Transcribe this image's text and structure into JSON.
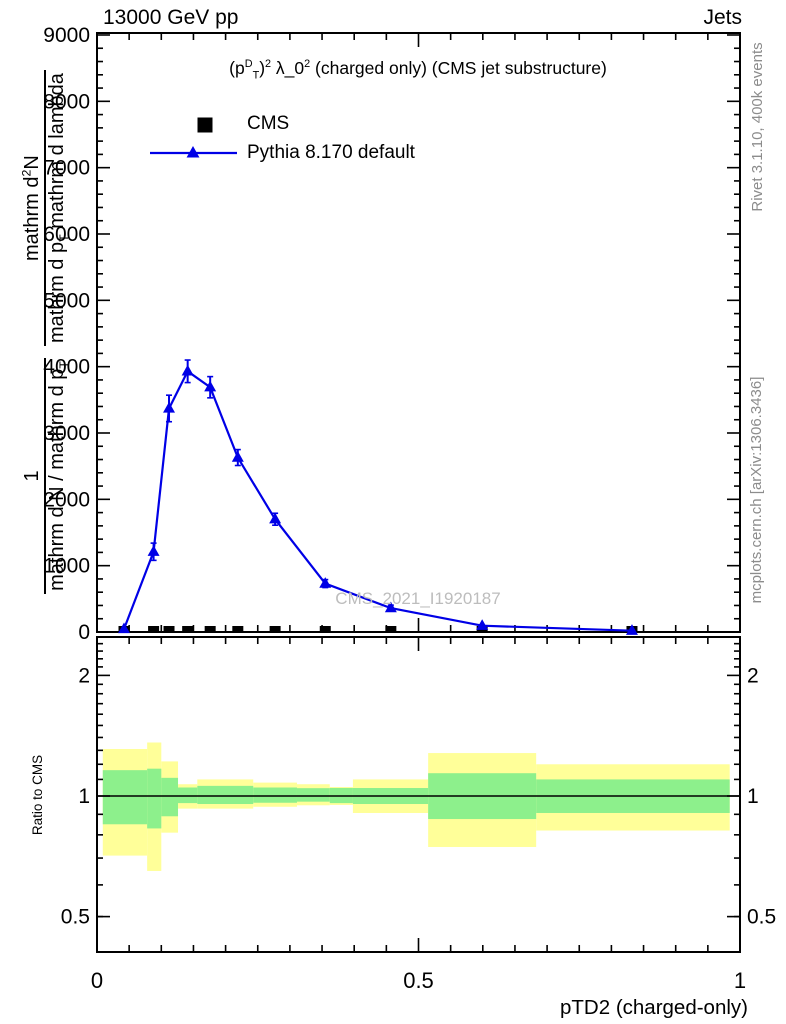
{
  "header": {
    "energy": "13000 GeV pp",
    "category": "Jets"
  },
  "title_tokens": [
    {
      "t": "n",
      "v": "(p"
    },
    {
      "t": "sup",
      "v": "D"
    },
    {
      "t": "sub",
      "v": "T"
    },
    {
      "t": "n",
      "v": ")"
    },
    {
      "t": "sup",
      "v": "2"
    },
    {
      "t": "n",
      "v": " λ_0"
    },
    {
      "t": "sup",
      "v": "2"
    },
    {
      "t": "n",
      "v": " (charged only) (CMS jet substructure)"
    }
  ],
  "legend": {
    "items": [
      {
        "label": "CMS",
        "marker": "square",
        "color": "#000000"
      },
      {
        "label": "Pythia 8.170 default",
        "marker": "triangle-line",
        "color": "#0000e6"
      }
    ]
  },
  "watermark": "CMS_2021_I1920187",
  "side_notes": {
    "rivet": "Rivet 3.1.10,  400k events",
    "mcplots": "mcplots.cern.ch [arXiv:1306.3436]"
  },
  "axes": {
    "xlabel": "pTD2 (charged-only)",
    "ylabel_ratio": "Ratio to CMS",
    "ylabel_main": {
      "frac1": {
        "num_tokens": [
          {
            "t": "n",
            "v": "1"
          }
        ],
        "den_tokens": [
          {
            "t": "n",
            "v": "mathrm d N / mathrm d p"
          },
          {
            "t": "sub",
            "v": "T"
          }
        ]
      },
      "frac2": {
        "num_tokens": [
          {
            "t": "n",
            "v": "mathrm d"
          },
          {
            "t": "sup",
            "v": "2"
          },
          {
            "t": "n",
            "v": "N"
          }
        ],
        "den_tokens": [
          {
            "t": "n",
            "v": "mathrm d p"
          },
          {
            "t": "sub",
            "v": "T"
          },
          {
            "t": "n",
            "v": " mathrm d lambda"
          }
        ]
      }
    }
  },
  "chart_data": {
    "type": "line",
    "title": "(p_T^D)^2 lambda_0^2 (charged only) (CMS jet substructure)",
    "xlabel": "pTD2 (charged-only)",
    "x_axis": {
      "min": 0,
      "max": 1,
      "major_ticks": [
        0,
        0.5,
        1
      ],
      "major_labels": [
        "0",
        "0.5",
        "1"
      ],
      "minor_step": 0.05
    },
    "main_panel": {
      "ymin": 0,
      "ymax": 9030,
      "major_step": 1000,
      "minor_step": 200,
      "ytick_values": [
        0,
        1000,
        2000,
        3000,
        4000,
        5000,
        6000,
        7000,
        8000,
        9000
      ],
      "ytick_labels": [
        "0",
        "1000",
        "2000",
        "3000",
        "4000",
        "5000",
        "6000",
        "7000",
        "8000",
        "9000"
      ],
      "series": [
        {
          "name": "CMS",
          "marker": "square",
          "color": "#000000",
          "draw": "markers",
          "x": [
            0.042,
            0.088,
            0.112,
            0.141,
            0.176,
            0.219,
            0.277,
            0.355,
            0.457,
            0.599,
            0.832
          ],
          "y": [
            0,
            0,
            0,
            0,
            0,
            0,
            0,
            0,
            0,
            0,
            0
          ]
        },
        {
          "name": "Pythia 8.170 default",
          "marker": "triangle",
          "color": "#0000e6",
          "draw": "line+markers+errors",
          "x": [
            0.042,
            0.088,
            0.112,
            0.141,
            0.176,
            0.219,
            0.277,
            0.355,
            0.457,
            0.599,
            0.832
          ],
          "y": [
            45,
            1210,
            3370,
            3930,
            3690,
            2630,
            1700,
            730,
            360,
            95,
            20
          ],
          "yerr": [
            25,
            130,
            200,
            170,
            160,
            120,
            90,
            60,
            45,
            25,
            12
          ]
        }
      ]
    },
    "ratio_panel": {
      "label": "Ratio to CMS",
      "scale": "log",
      "ymin": 0.408,
      "ymax": 2.49,
      "unity": 1,
      "tick_values": [
        0.5,
        1,
        2
      ],
      "tick_labels": [
        "0.5",
        "1",
        "2"
      ],
      "minor_ticks": [
        0.5,
        0.6,
        0.7,
        0.8,
        0.9,
        1.1,
        1.2,
        1.3,
        1.4,
        1.5,
        1.6,
        1.7,
        1.8,
        1.9,
        2.1,
        2.2,
        2.3,
        2.4
      ],
      "band_colors": {
        "yellow": "#ffff99",
        "green": "#8df08c"
      },
      "bands": [
        {
          "x1": 0.009,
          "x2": 0.078,
          "yellow": [
            0.71,
            1.31
          ],
          "green": [
            0.85,
            1.16
          ]
        },
        {
          "x1": 0.078,
          "x2": 0.1,
          "yellow": [
            0.65,
            1.36
          ],
          "green": [
            0.83,
            1.17
          ]
        },
        {
          "x1": 0.1,
          "x2": 0.126,
          "yellow": [
            0.81,
            1.22
          ],
          "green": [
            0.89,
            1.11
          ]
        },
        {
          "x1": 0.126,
          "x2": 0.156,
          "yellow": [
            0.93,
            1.07
          ],
          "green": [
            0.96,
            1.05
          ]
        },
        {
          "x1": 0.156,
          "x2": 0.243,
          "yellow": [
            0.93,
            1.1
          ],
          "green": [
            0.955,
            1.06
          ]
        },
        {
          "x1": 0.243,
          "x2": 0.311,
          "yellow": [
            0.94,
            1.08
          ],
          "green": [
            0.962,
            1.05
          ]
        },
        {
          "x1": 0.311,
          "x2": 0.362,
          "yellow": [
            0.948,
            1.07
          ],
          "green": [
            0.968,
            1.046
          ]
        },
        {
          "x1": 0.362,
          "x2": 0.398,
          "yellow": [
            0.95,
            1.053
          ],
          "green": [
            0.96,
            1.047
          ]
        },
        {
          "x1": 0.398,
          "x2": 0.515,
          "yellow": [
            0.907,
            1.1
          ],
          "green": [
            0.955,
            1.047
          ]
        },
        {
          "x1": 0.515,
          "x2": 0.683,
          "yellow": [
            0.746,
            1.28
          ],
          "green": [
            0.876,
            1.14
          ]
        },
        {
          "x1": 0.683,
          "x2": 0.984,
          "yellow": [
            0.82,
            1.2
          ],
          "green": [
            0.907,
            1.1
          ]
        }
      ]
    }
  }
}
